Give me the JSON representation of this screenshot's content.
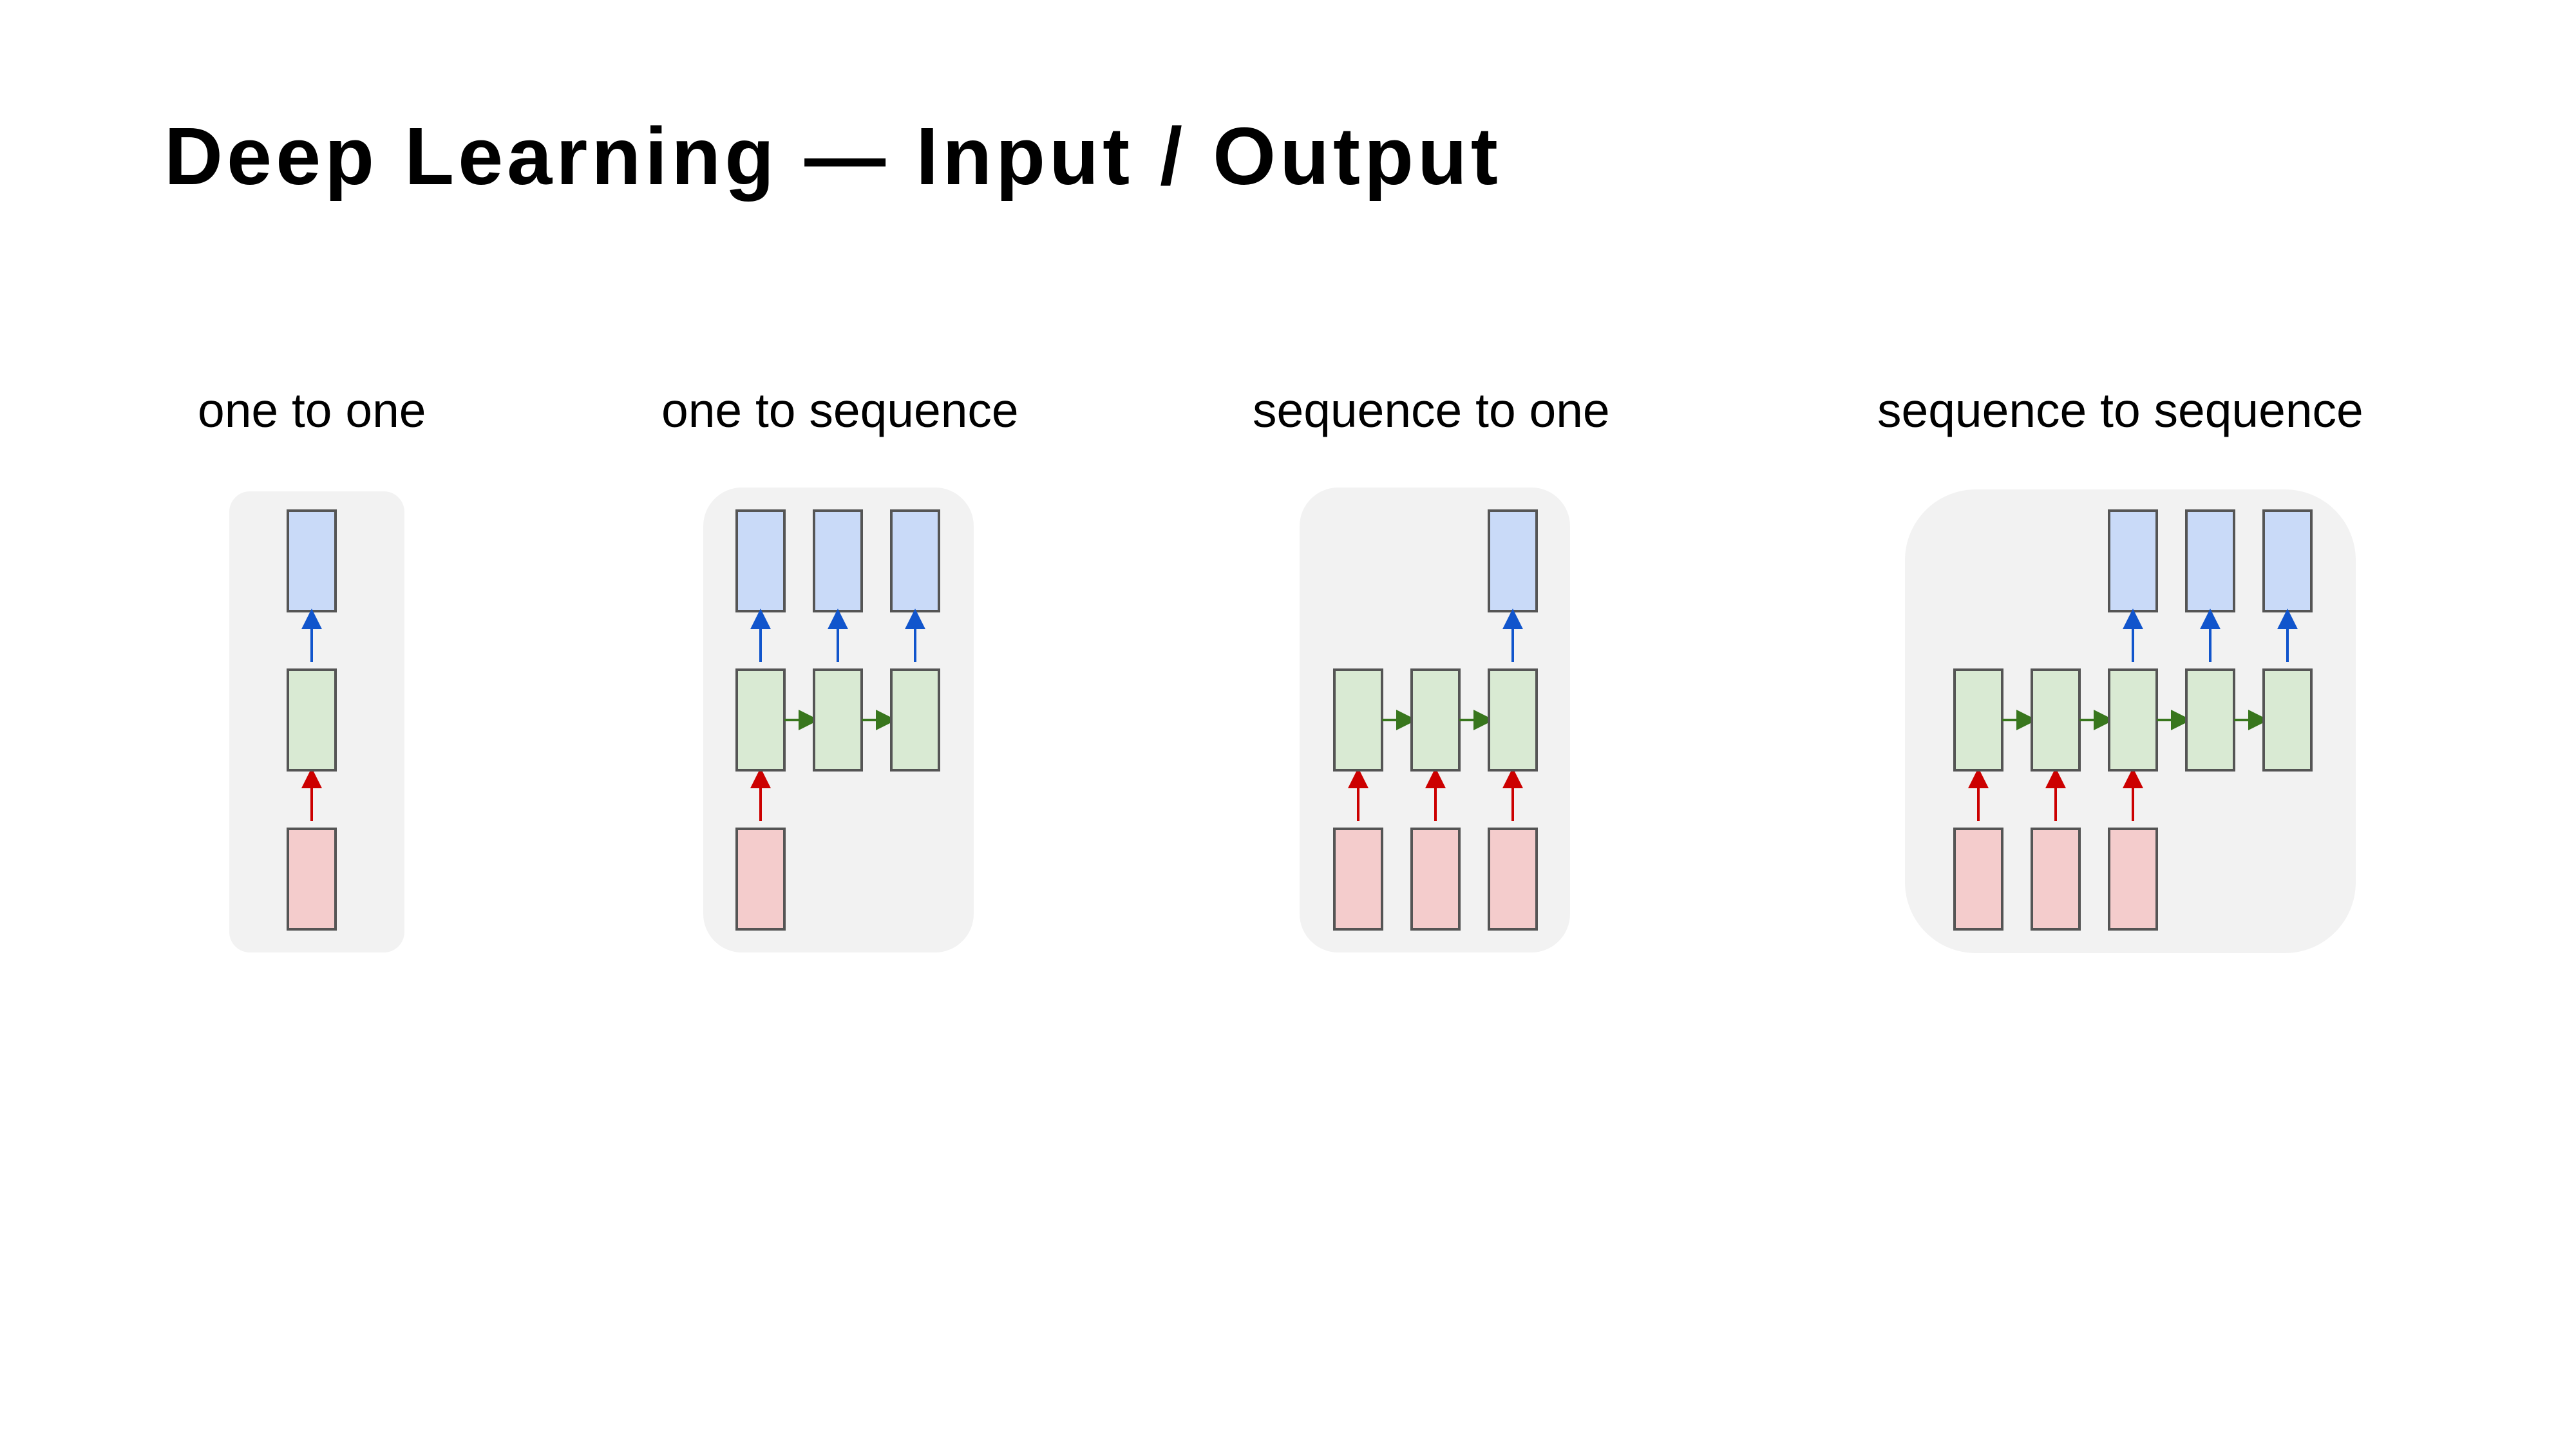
{
  "slide": {
    "title": "Deep Learning — Input / Output"
  },
  "diagrams": [
    {
      "label": "one to one",
      "inputs": [
        0
      ],
      "hidden": [
        0
      ],
      "outputs": [
        0
      ],
      "rnn_links": false
    },
    {
      "label": "one to sequence",
      "inputs": [
        0
      ],
      "hidden": [
        0,
        1,
        2
      ],
      "outputs": [
        0,
        1,
        2
      ],
      "rnn_links": true
    },
    {
      "label": "sequence to one",
      "inputs": [
        0,
        1,
        2
      ],
      "hidden": [
        0,
        1,
        2
      ],
      "outputs": [
        2
      ],
      "rnn_links": true
    },
    {
      "label": "sequence to sequence",
      "inputs": [
        0,
        1,
        2
      ],
      "hidden": [
        0,
        1,
        2,
        3,
        4
      ],
      "outputs": [
        2,
        3,
        4
      ],
      "rnn_links": true
    }
  ],
  "colors": {
    "panel_bg": "#f2f2f2",
    "input_fill": "#f4cccc",
    "input_arrow": "#cc0000",
    "hidden_fill": "#d9ead3",
    "hidden_arrow": "#38761d",
    "output_fill": "#c9daf8",
    "output_arrow": "#1155cc",
    "box_stroke": "#555555"
  }
}
